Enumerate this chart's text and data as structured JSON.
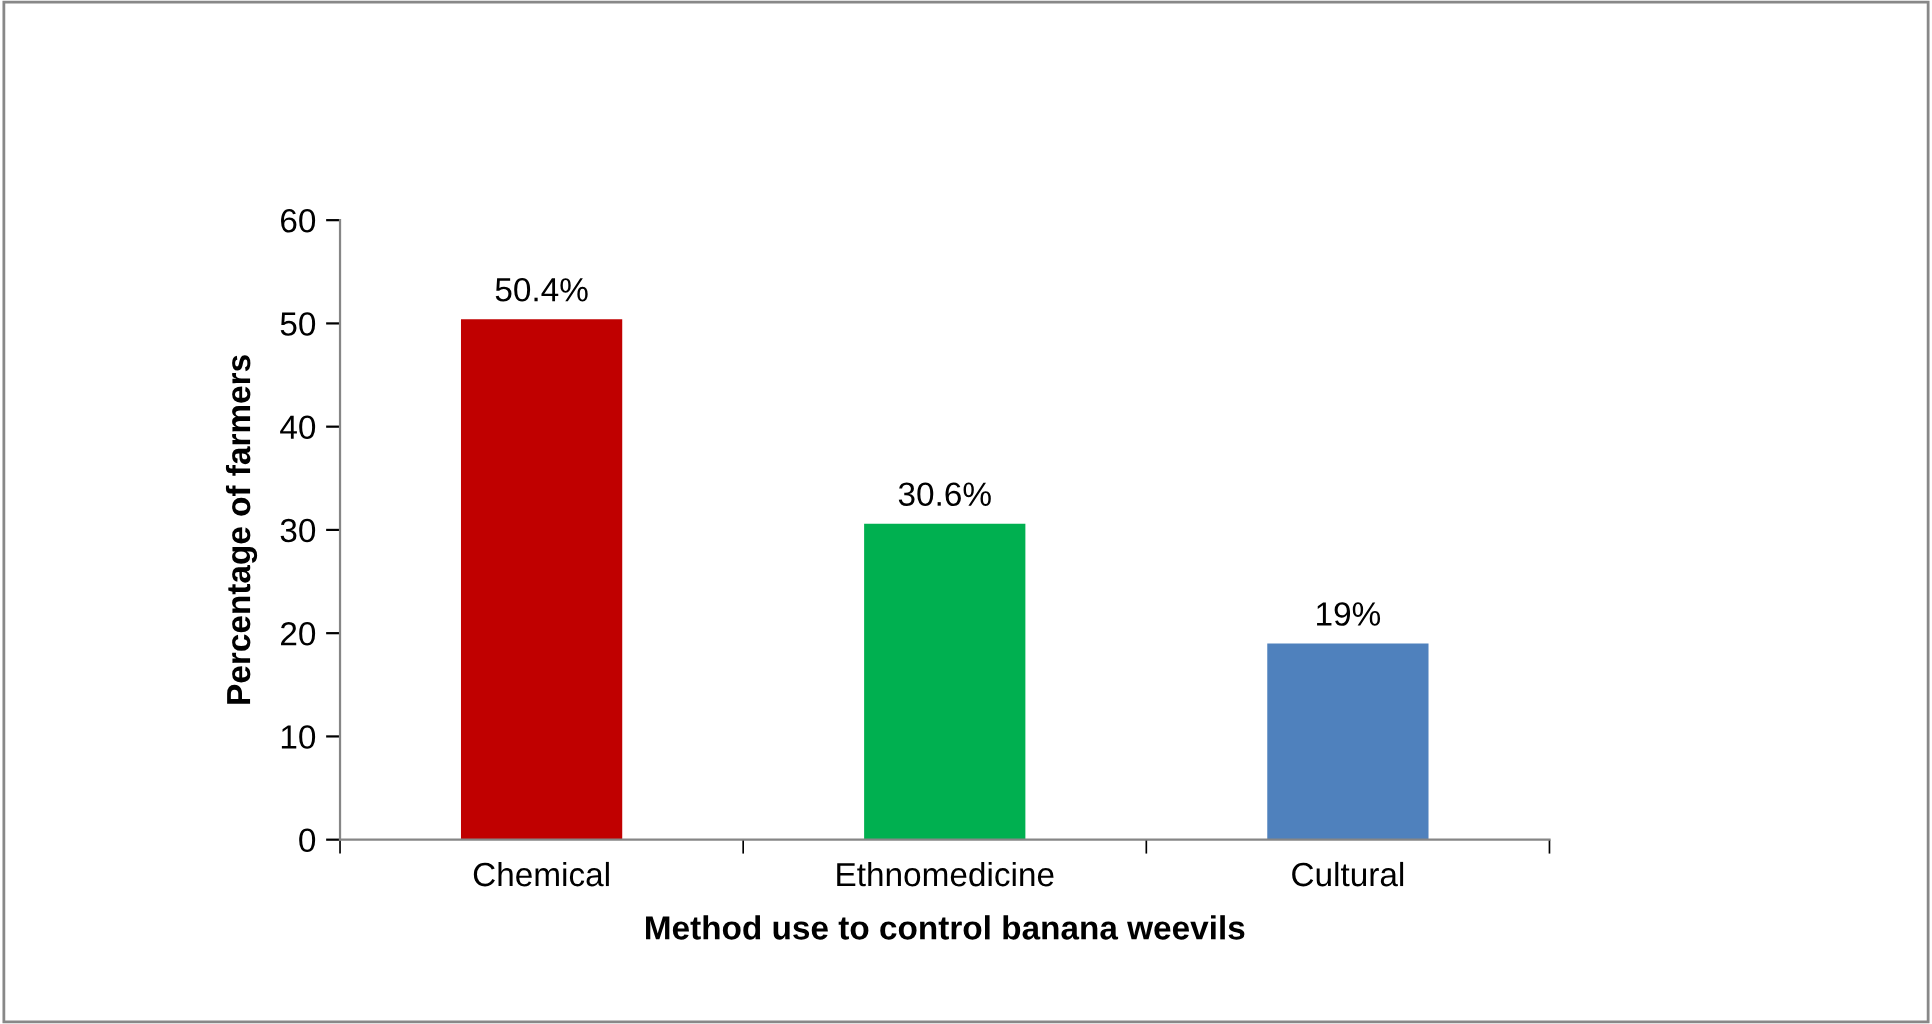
{
  "chart_data": {
    "type": "bar",
    "xlabel": "Method use to control banana weevils",
    "ylabel": "Percentage of farmers",
    "categories": [
      "Chemical",
      "Ethnomedicine",
      "Cultural"
    ],
    "values": [
      50.4,
      30.6,
      19
    ],
    "colors": [
      "#c00000",
      "#00b050",
      "#4f81bd"
    ],
    "value_labels": [
      "50.4%",
      "30.6%",
      "19%"
    ],
    "ylim": [
      0,
      60
    ],
    "yticks": [
      0,
      10,
      20,
      30,
      40,
      50,
      60
    ],
    "grid": false,
    "legend": false
  }
}
